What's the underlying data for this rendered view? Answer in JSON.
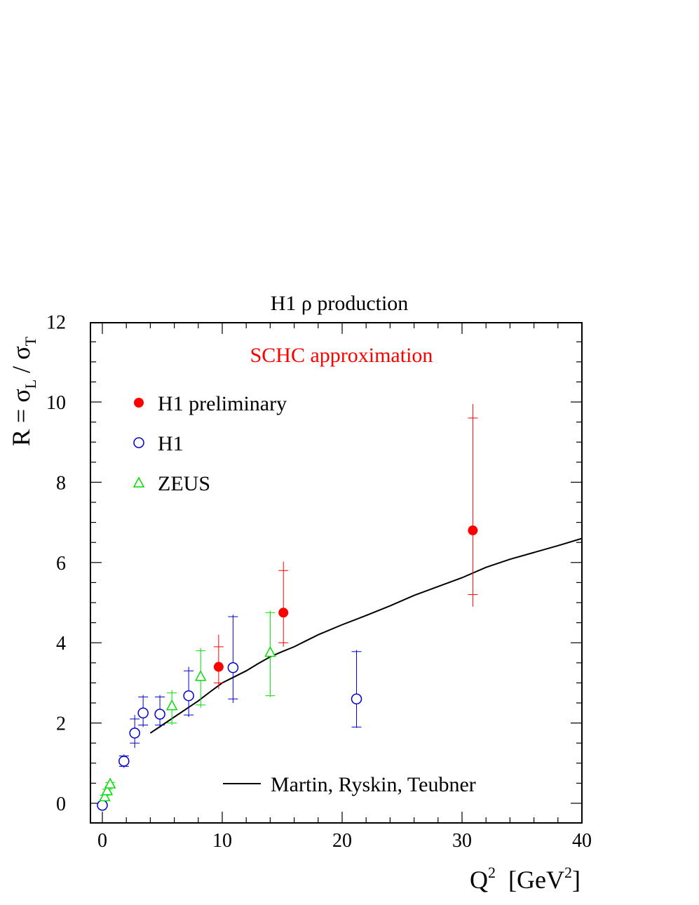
{
  "chart_data": {
    "type": "scatter",
    "title": "H1 ρ production",
    "annotation": "SCHC approximation",
    "xlabel": {
      "base": "Q",
      "sup": "2",
      "rest": "  [GeV",
      "sup2": "2",
      "close": "]"
    },
    "ylabel": {
      "pre": "R = σ",
      "sub1": "L",
      "mid": " / σ",
      "sub2": "T"
    },
    "xlim": [
      -1,
      40
    ],
    "ylim": [
      -0.5,
      12
    ],
    "x_ticks": [
      0,
      10,
      20,
      30,
      40
    ],
    "y_ticks": [
      0,
      2,
      4,
      6,
      8,
      10,
      12
    ],
    "grid": false,
    "legend_position": "top-left",
    "colors": {
      "h1_prelim": "#ff0000",
      "h1": "#0000cc",
      "zeus": "#00dd00",
      "theory": "#000000",
      "annotation": "#ff0000"
    },
    "series": [
      {
        "name": "H1 preliminary",
        "marker": "filled-circle",
        "color": "#ff0000",
        "points": [
          {
            "x": 9.7,
            "y": 3.4,
            "stat_lo": 3.0,
            "stat_hi": 3.9,
            "tot_lo": 2.85,
            "tot_hi": 4.2
          },
          {
            "x": 15.1,
            "y": 4.75,
            "stat_lo": 4.0,
            "stat_hi": 5.8,
            "tot_lo": 3.9,
            "tot_hi": 6.02
          },
          {
            "x": 30.9,
            "y": 6.8,
            "stat_lo": 5.2,
            "stat_hi": 9.6,
            "tot_lo": 4.9,
            "tot_hi": 9.95
          }
        ]
      },
      {
        "name": "H1",
        "marker": "open-circle",
        "color": "#0000cc",
        "points": [
          {
            "x": 0.0,
            "y": -0.05,
            "stat_lo": -0.1,
            "stat_hi": 0.0,
            "tot_lo": -0.12,
            "tot_hi": 0.02
          },
          {
            "x": 1.8,
            "y": 1.05,
            "stat_lo": 0.92,
            "stat_hi": 1.18,
            "tot_lo": 0.88,
            "tot_hi": 1.22
          },
          {
            "x": 2.7,
            "y": 1.75,
            "stat_lo": 1.5,
            "stat_hi": 2.1,
            "tot_lo": 1.38,
            "tot_hi": 2.2
          },
          {
            "x": 3.4,
            "y": 2.25,
            "stat_lo": 1.95,
            "stat_hi": 2.65,
            "tot_lo": 1.9,
            "tot_hi": 2.7
          },
          {
            "x": 4.8,
            "y": 2.22,
            "stat_lo": 1.95,
            "stat_hi": 2.65,
            "tot_lo": 1.88,
            "tot_hi": 2.7
          },
          {
            "x": 7.2,
            "y": 2.68,
            "stat_lo": 2.2,
            "stat_hi": 3.3,
            "tot_lo": 2.15,
            "tot_hi": 3.4
          },
          {
            "x": 10.9,
            "y": 3.38,
            "stat_lo": 2.6,
            "stat_hi": 4.65,
            "tot_lo": 2.5,
            "tot_hi": 4.7
          },
          {
            "x": 21.2,
            "y": 2.6,
            "stat_lo": 1.9,
            "stat_hi": 3.78,
            "tot_lo": 1.88,
            "tot_hi": 3.82
          }
        ]
      },
      {
        "name": "ZEUS",
        "marker": "open-triangle",
        "color": "#00dd00",
        "points": [
          {
            "x": 0.2,
            "y": 0.15,
            "stat_lo": 0.1,
            "stat_hi": 0.2,
            "tot_lo": 0.1,
            "tot_hi": 0.2
          },
          {
            "x": 0.4,
            "y": 0.3,
            "stat_lo": 0.25,
            "stat_hi": 0.35,
            "tot_lo": 0.25,
            "tot_hi": 0.35
          },
          {
            "x": 0.65,
            "y": 0.47,
            "stat_lo": 0.42,
            "stat_hi": 0.52,
            "tot_lo": 0.42,
            "tot_hi": 0.52
          },
          {
            "x": 5.8,
            "y": 2.42,
            "stat_lo": 2.0,
            "stat_hi": 2.75,
            "tot_lo": 1.95,
            "tot_hi": 2.82
          },
          {
            "x": 8.2,
            "y": 3.15,
            "stat_lo": 2.45,
            "stat_hi": 3.8,
            "tot_lo": 2.38,
            "tot_hi": 3.87
          },
          {
            "x": 14.0,
            "y": 3.75,
            "stat_lo": 2.68,
            "stat_hi": 4.75,
            "tot_lo": 2.65,
            "tot_hi": 4.8
          }
        ]
      }
    ],
    "theory": {
      "name": "Martin, Ryskin, Teubner",
      "x": [
        4,
        5,
        6,
        7,
        8,
        9,
        10,
        11,
        12,
        13,
        14,
        15,
        16,
        17,
        18,
        20,
        22,
        24,
        26,
        28,
        30,
        32,
        34,
        36,
        38,
        40
      ],
      "y": [
        1.75,
        1.95,
        2.15,
        2.35,
        2.55,
        2.78,
        3.0,
        3.15,
        3.3,
        3.48,
        3.65,
        3.78,
        3.9,
        4.05,
        4.2,
        4.45,
        4.68,
        4.92,
        5.18,
        5.4,
        5.62,
        5.88,
        6.08,
        6.25,
        6.42,
        6.6
      ]
    }
  }
}
